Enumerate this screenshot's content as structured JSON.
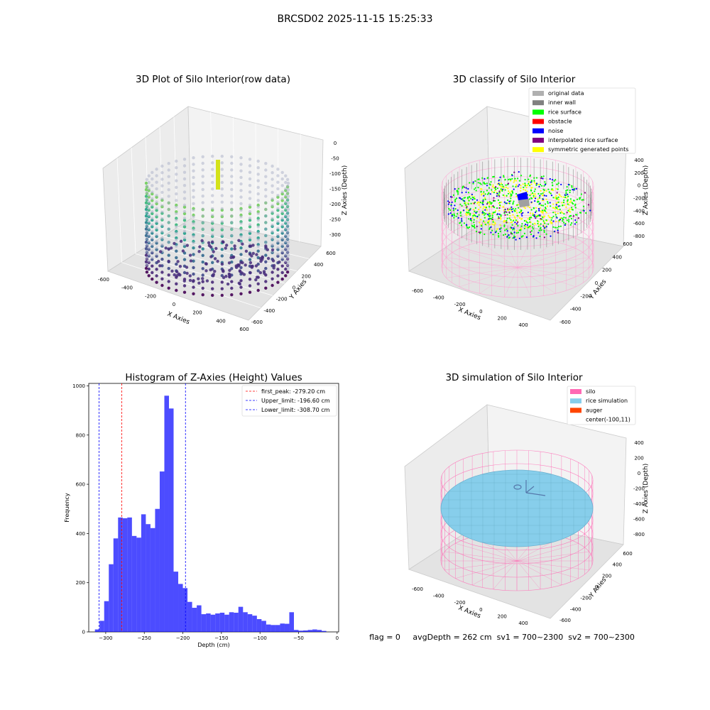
{
  "figure": {
    "suptitle": "BRCSD02 2025-11-15 15:25:33",
    "footer": "flag = 0     avgDepth = 262 cm  sv1 = 700~2300  sv2 = 700~2300"
  },
  "panels": {
    "raw": {
      "title": "3D Plot of Silo Interior(row data)",
      "xlabel": "X Axies",
      "ylabel": "Y Axies",
      "zlabel": "Z Axies (Depth)",
      "xticks": [
        "-600",
        "-400",
        "-200",
        "0",
        "200",
        "400",
        "600"
      ],
      "yticks": [
        "-600",
        "-400",
        "-200",
        "0",
        "200",
        "400",
        "600"
      ],
      "zticks": [
        "0",
        "-50",
        "-100",
        "-150",
        "-200",
        "-250",
        "-300"
      ]
    },
    "classify": {
      "title": "3D classify of Silo Interior",
      "xlabel": "X Axies",
      "ylabel": "Y Axies",
      "zlabel": "Z Axies (Depth)",
      "xticks": [
        "-600",
        "-400",
        "-200",
        "0",
        "200",
        "400"
      ],
      "yticks": [
        "-600",
        "-400",
        "-200",
        "0",
        "200",
        "400",
        "600"
      ],
      "zticks": [
        "400",
        "200",
        "0",
        "-200",
        "-400",
        "-600",
        "-800"
      ],
      "legend": [
        {
          "label": "original data",
          "color": "#b0b0b0"
        },
        {
          "label": "inner wall",
          "color": "#808080"
        },
        {
          "label": "rice surface",
          "color": "#00ff00"
        },
        {
          "label": "obstacle",
          "color": "#ff0000"
        },
        {
          "label": "noise",
          "color": "#0000ff"
        },
        {
          "label": "interpolated rice surface",
          "color": "#800080"
        },
        {
          "label": "symmetric generated points",
          "color": "#ffff00"
        }
      ]
    },
    "simulation": {
      "title": "3D simulation of Silo Interior",
      "xlabel": "X Axies",
      "ylabel": "Y Axies",
      "zlabel": "Z Axies (Depth)",
      "xticks": [
        "-600",
        "-400",
        "-200",
        "0",
        "200",
        "400"
      ],
      "yticks": [
        "-600",
        "-400",
        "-200",
        "0",
        "200",
        "400",
        "600"
      ],
      "zticks": [
        "400",
        "200",
        "0",
        "-200",
        "-400",
        "-600",
        "-800"
      ],
      "legend": [
        {
          "label": "silo",
          "color": "#ff69b4"
        },
        {
          "label": "rice simulation",
          "color": "#87ceeb"
        },
        {
          "label": "auger",
          "color": "#ff4500"
        },
        {
          "label": "center(-100,11)",
          "color": ""
        }
      ]
    }
  },
  "chart_data": {
    "type": "bar",
    "title": "Histogram of Z-Axies (Height) Values",
    "xlabel": "Depth (cm)",
    "ylabel": "Frequency",
    "xlim": [
      -322,
      2
    ],
    "ylim": [
      0,
      1010
    ],
    "xticks": [
      -300,
      -250,
      -200,
      -150,
      -100,
      -50,
      0
    ],
    "yticks": [
      0,
      200,
      400,
      600,
      800,
      1000
    ],
    "bar_color": "#0000ff",
    "bin_edges": [
      -314,
      -308,
      -302,
      -296,
      -290,
      -284,
      -278,
      -272,
      -266,
      -260,
      -254,
      -248,
      -242,
      -236,
      -230,
      -224,
      -218,
      -212,
      -206,
      -200,
      -194,
      -188,
      -182,
      -176,
      -170,
      -164,
      -158,
      -152,
      -146,
      -140,
      -134,
      -128,
      -122,
      -116,
      -110,
      -104,
      -98,
      -92,
      -86,
      -80,
      -74,
      -68,
      -62,
      -56,
      -50,
      -44,
      -38,
      -32,
      -26,
      -20,
      -14
    ],
    "values": [
      10,
      45,
      125,
      275,
      380,
      465,
      462,
      465,
      390,
      383,
      478,
      438,
      422,
      500,
      652,
      960,
      908,
      245,
      195,
      178,
      122,
      98,
      108,
      72,
      75,
      70,
      75,
      78,
      70,
      80,
      78,
      102,
      80,
      72,
      66,
      52,
      45,
      30,
      28,
      28,
      34,
      33,
      80,
      8,
      5,
      6,
      8,
      10,
      8,
      4
    ],
    "vlines": [
      {
        "x": -279.2,
        "label": "first_peak: -279.20 cm",
        "color": "#ff0000"
      },
      {
        "x": -196.6,
        "label": "Upper_limit: -196.60 cm",
        "color": "#0000ff"
      },
      {
        "x": -308.7,
        "label": "Lower_limit: -308.70 cm",
        "color": "#0000ff"
      }
    ],
    "legend_position": "top-right"
  }
}
